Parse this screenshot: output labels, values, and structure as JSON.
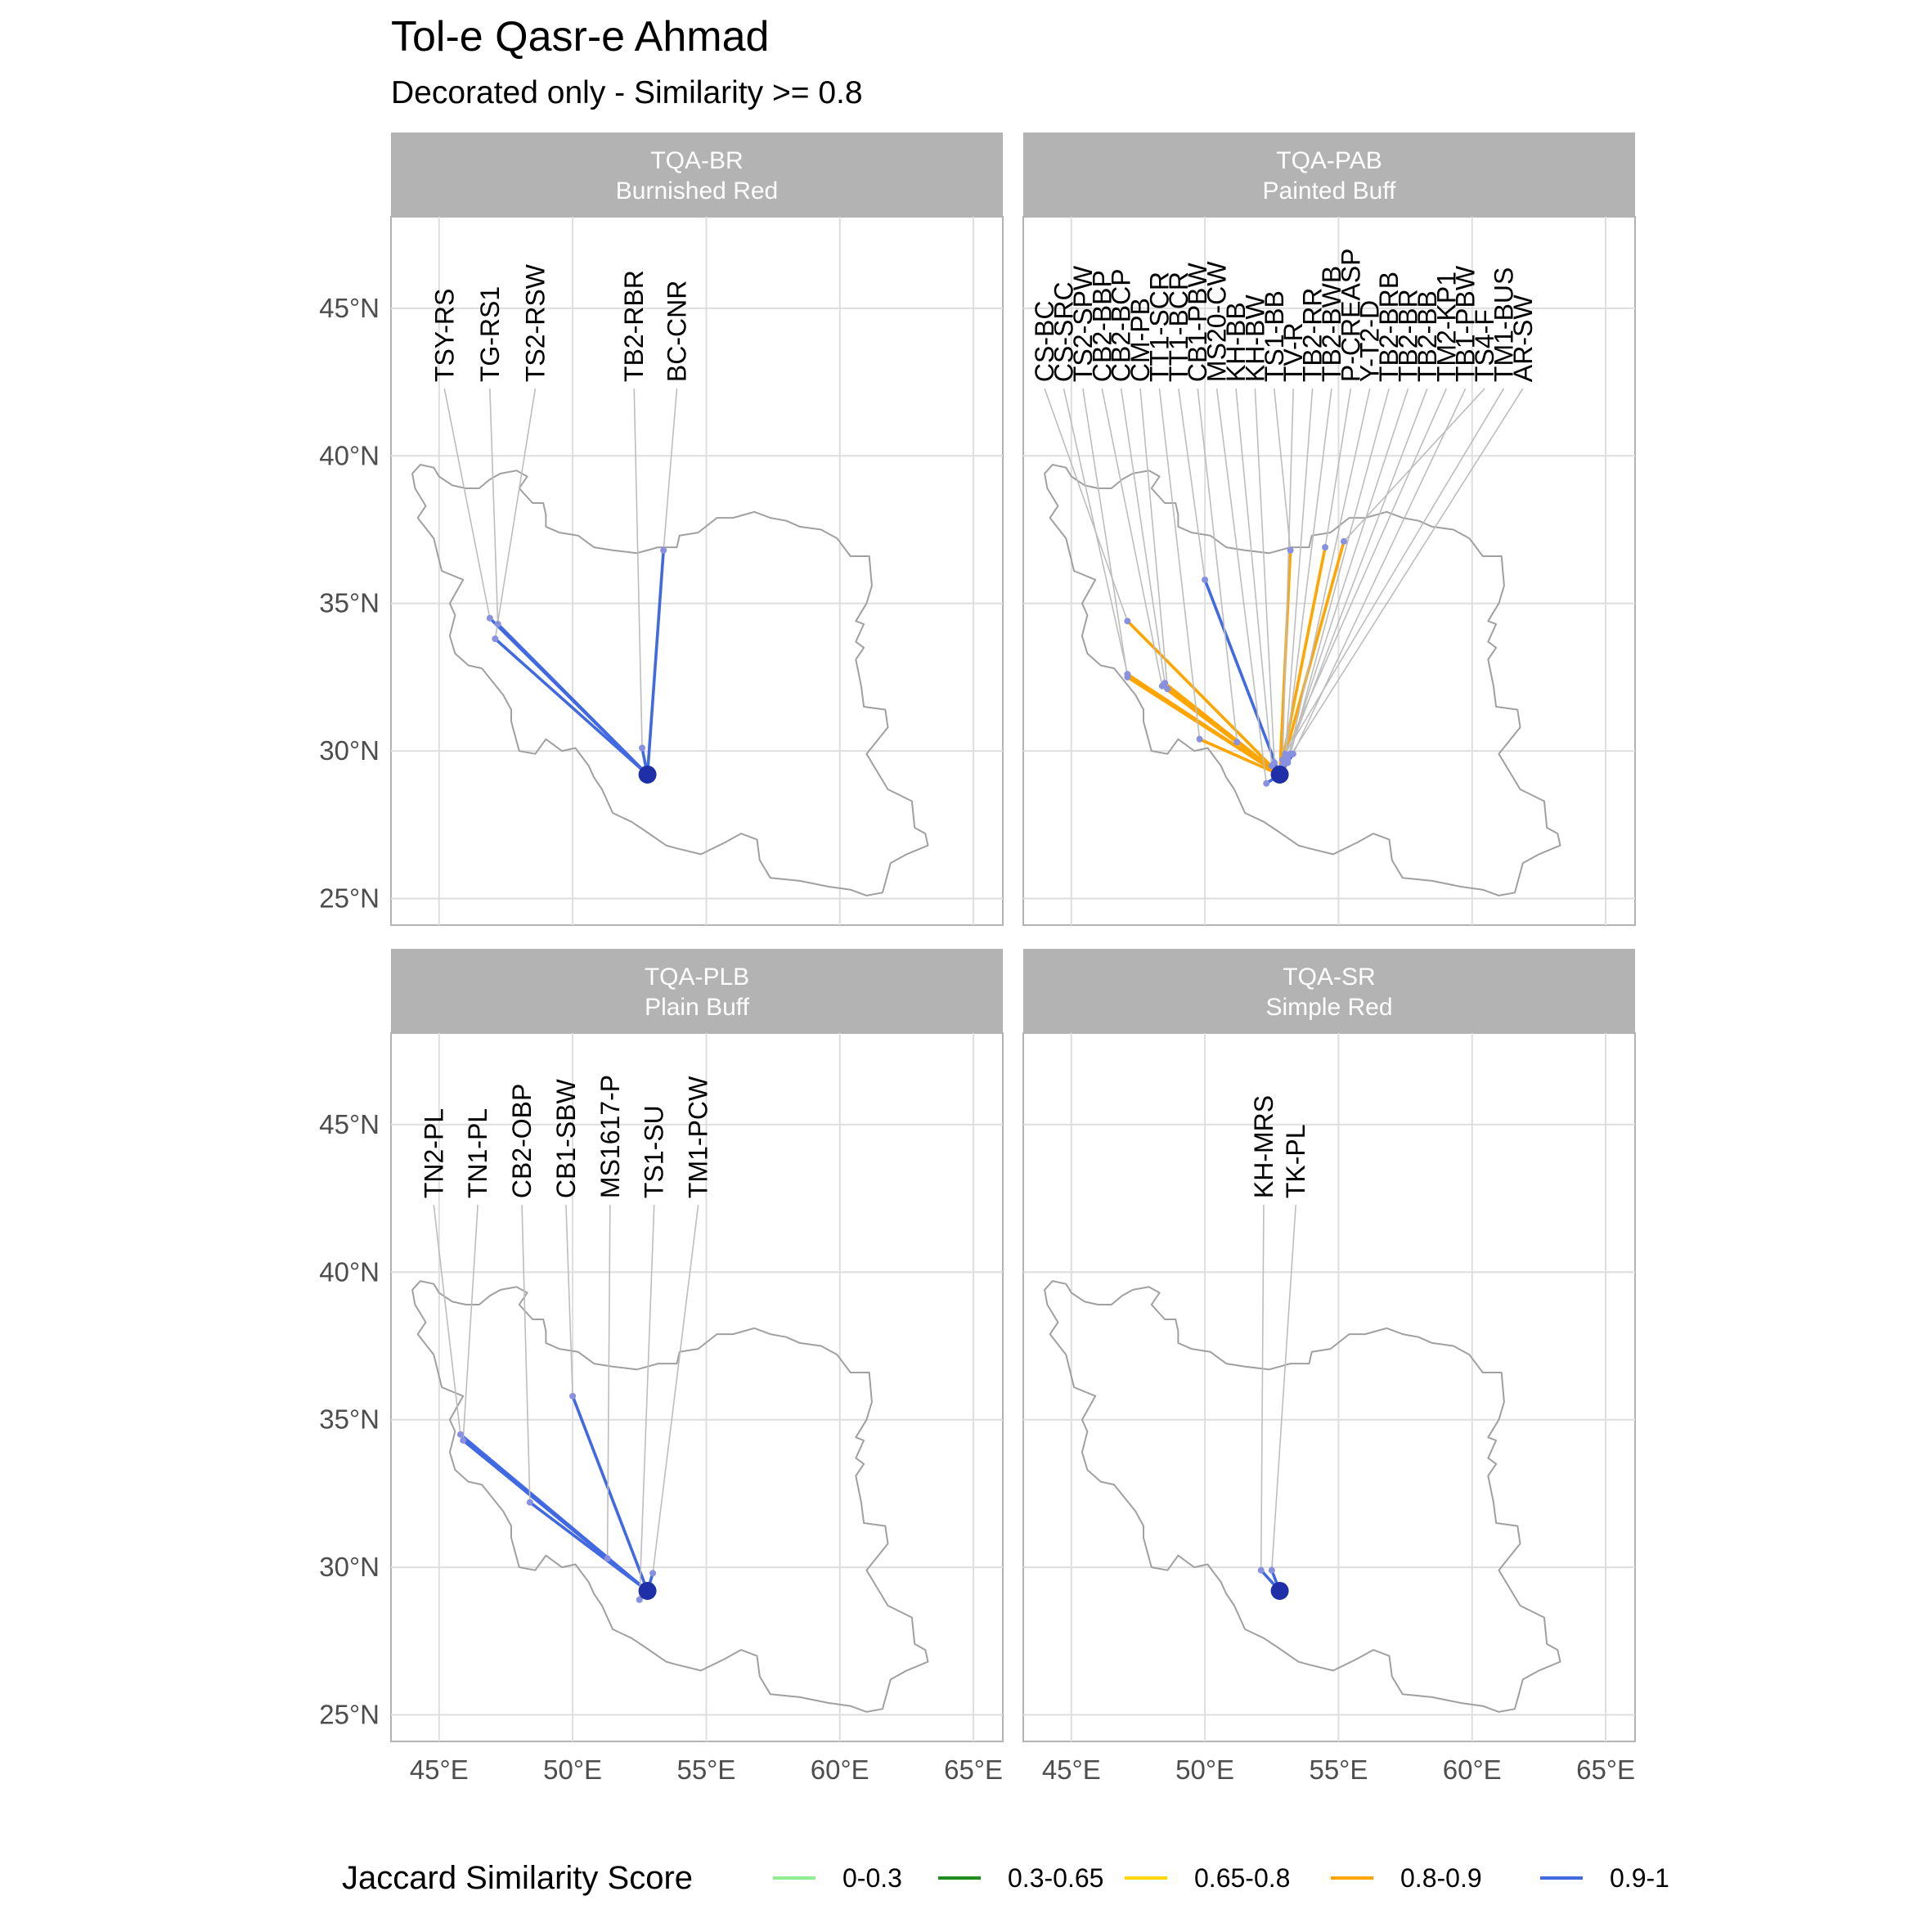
{
  "title": "Tol-e Qasr-e Ahmad",
  "subtitle": "Decorated only - Similarity >= 0.8",
  "axes": {
    "x_ticks": [
      {
        "value": 45,
        "label": "45°E"
      },
      {
        "value": 50,
        "label": "50°E"
      },
      {
        "value": 55,
        "label": "55°E"
      },
      {
        "value": 60,
        "label": "60°E"
      },
      {
        "value": 65,
        "label": "65°E"
      }
    ],
    "y_ticks": [
      {
        "value": 25,
        "label": "25°N"
      },
      {
        "value": 30,
        "label": "30°N"
      },
      {
        "value": 35,
        "label": "35°N"
      },
      {
        "value": 40,
        "label": "40°N"
      },
      {
        "value": 45,
        "label": "45°N"
      }
    ],
    "xlim": [
      43.2,
      66.1
    ],
    "ylim": [
      24.1,
      48.1
    ]
  },
  "legend": {
    "title": "Jaccard Similarity Score",
    "items": [
      {
        "label": "0-0.3",
        "color": "#90ee90"
      },
      {
        "label": "0.3-0.65",
        "color": "#228b22"
      },
      {
        "label": "0.65-0.8",
        "color": "#ffd700"
      },
      {
        "label": "0.8-0.9",
        "color": "#ffa500"
      },
      {
        "label": "0.9-1",
        "color": "#4169e1"
      }
    ]
  },
  "origin": {
    "lon": 52.8,
    "lat": 29.2
  },
  "chart_data": {
    "type": "map",
    "panels": [
      {
        "code": "TQA-BR",
        "name": "Burnished Red",
        "sites": [
          {
            "label": "TSY-RS",
            "lon": 46.9,
            "lat": 34.5,
            "color": "#4169e1"
          },
          {
            "label": "TG-RS1",
            "lon": 47.2,
            "lat": 34.3,
            "color": "#4169e1"
          },
          {
            "label": "TS2-RSW",
            "lon": 47.1,
            "lat": 33.8,
            "color": "#4169e1"
          },
          {
            "label": "TB2-RBR",
            "lon": 52.6,
            "lat": 30.1,
            "color": "#4169e1"
          },
          {
            "label": "BC-CNR",
            "lon": 53.4,
            "lat": 36.8,
            "color": "#4169e1"
          }
        ]
      },
      {
        "code": "TQA-PAB",
        "name": "Painted Buff",
        "sites": [
          {
            "label": "CS-BC",
            "lon": 47.1,
            "lat": 34.4,
            "color": "#ffa500"
          },
          {
            "label": "CS-SRC",
            "lon": 47.1,
            "lat": 32.6,
            "color": "#ffa500"
          },
          {
            "label": "TS2-SPW",
            "lon": 47.1,
            "lat": 32.5,
            "color": "#ffa500"
          },
          {
            "label": "CB2-BBP",
            "lon": 48.4,
            "lat": 32.2,
            "color": "#ffa500"
          },
          {
            "label": "CB2-BCP",
            "lon": 48.5,
            "lat": 32.3,
            "color": "#ffa500"
          },
          {
            "label": "CM-PB",
            "lon": 48.6,
            "lat": 32.1,
            "color": "#ffa500"
          },
          {
            "label": "TT1-SCR",
            "lon": 49.8,
            "lat": 30.4,
            "color": "#ffa500"
          },
          {
            "label": "TT1-BCR",
            "lon": 50.0,
            "lat": 35.8,
            "color": "#4169e1"
          },
          {
            "label": "CB1-PBW",
            "lon": 51.2,
            "lat": 30.3,
            "color": "#ffa500"
          },
          {
            "label": "MS20-CW",
            "lon": 52.3,
            "lat": 28.9,
            "color": "#4169e1"
          },
          {
            "label": "KH-BB",
            "lon": 52.5,
            "lat": 29.5,
            "color": "#4169e1"
          },
          {
            "label": "KH-BW",
            "lon": 52.6,
            "lat": 29.6,
            "color": "#4169e1"
          },
          {
            "label": "TS1-BB",
            "lon": 53.2,
            "lat": 36.8,
            "color": "#ffa500"
          },
          {
            "label": "TV-R",
            "lon": 52.9,
            "lat": 29.5,
            "color": "#ffa500"
          },
          {
            "label": "TB2-RR",
            "lon": 53.0,
            "lat": 29.8,
            "color": "#ffa500"
          },
          {
            "label": "TB2-BWB",
            "lon": 53.0,
            "lat": 29.7,
            "color": "#ffa500"
          },
          {
            "label": "P-CREASP",
            "lon": 54.5,
            "lat": 36.9,
            "color": "#ffa500"
          },
          {
            "label": "Y-T2-D",
            "lon": 53.1,
            "lat": 29.6,
            "color": "#ffa500"
          },
          {
            "label": "TB2-BRB",
            "lon": 53.2,
            "lat": 29.9,
            "color": "#ffa500"
          },
          {
            "label": "TB2-BR",
            "lon": 53.1,
            "lat": 29.8,
            "color": "#ffa500"
          },
          {
            "label": "TB2-BB",
            "lon": 53.0,
            "lat": 29.6,
            "color": "#ffa500"
          },
          {
            "label": "TM2-KP1",
            "lon": 52.9,
            "lat": 29.7,
            "color": "#ffa500"
          },
          {
            "label": "TB1-PBW",
            "lon": 53.3,
            "lat": 29.9,
            "color": "#4169e1"
          },
          {
            "label": "TS4-F",
            "lon": 55.2,
            "lat": 37.1,
            "color": "#ffa500"
          },
          {
            "label": "TM1-BUS",
            "lon": 53.0,
            "lat": 29.9,
            "color": "#ffa500"
          },
          {
            "label": "AR-SW",
            "lon": 53.1,
            "lat": 29.7,
            "color": "#ffa500"
          }
        ]
      },
      {
        "code": "TQA-PLB",
        "name": "Plain Buff",
        "sites": [
          {
            "label": "TN2-PL",
            "lon": 45.8,
            "lat": 34.5,
            "color": "#4169e1"
          },
          {
            "label": "TN1-PL",
            "lon": 45.9,
            "lat": 34.3,
            "color": "#4169e1"
          },
          {
            "label": "CB2-OBP",
            "lon": 48.4,
            "lat": 32.2,
            "color": "#4169e1"
          },
          {
            "label": "CB1-SBW",
            "lon": 50.0,
            "lat": 35.8,
            "color": "#4169e1"
          },
          {
            "label": "MS1617-P",
            "lon": 51.3,
            "lat": 30.3,
            "color": "#4169e1"
          },
          {
            "label": "TS1-SU",
            "lon": 52.5,
            "lat": 28.9,
            "color": "#4169e1"
          },
          {
            "label": "TM1-PCW",
            "lon": 53.0,
            "lat": 29.8,
            "color": "#4169e1"
          }
        ]
      },
      {
        "code": "TQA-SR",
        "name": "Simple Red",
        "sites": [
          {
            "label": "KH-MRS",
            "lon": 52.1,
            "lat": 29.9,
            "color": "#4169e1"
          },
          {
            "label": "TK-PL",
            "lon": 52.5,
            "lat": 29.9,
            "color": "#4169e1"
          }
        ]
      }
    ],
    "label_lat": 42.5,
    "grid": true,
    "legend_position": "bottom"
  },
  "iran_outline": [
    [
      44.0,
      39.4
    ],
    [
      44.3,
      39.7
    ],
    [
      44.8,
      39.6
    ],
    [
      45.0,
      39.3
    ],
    [
      45.5,
      39.0
    ],
    [
      46.0,
      38.9
    ],
    [
      46.5,
      38.9
    ],
    [
      46.9,
      39.2
    ],
    [
      47.3,
      39.4
    ],
    [
      47.9,
      39.5
    ],
    [
      48.3,
      39.3
    ],
    [
      48.0,
      38.9
    ],
    [
      48.5,
      38.4
    ],
    [
      48.9,
      38.4
    ],
    [
      49.0,
      38.0
    ],
    [
      49.0,
      37.6
    ],
    [
      49.5,
      37.4
    ],
    [
      50.2,
      37.3
    ],
    [
      50.8,
      36.9
    ],
    [
      51.5,
      36.8
    ],
    [
      52.4,
      36.7
    ],
    [
      53.2,
      36.9
    ],
    [
      53.9,
      36.9
    ],
    [
      54.0,
      37.3
    ],
    [
      54.7,
      37.4
    ],
    [
      55.4,
      37.9
    ],
    [
      56.0,
      37.9
    ],
    [
      56.8,
      38.1
    ],
    [
      57.4,
      37.9
    ],
    [
      58.0,
      37.8
    ],
    [
      58.5,
      37.6
    ],
    [
      59.3,
      37.5
    ],
    [
      59.9,
      37.2
    ],
    [
      60.4,
      36.6
    ],
    [
      61.1,
      36.6
    ],
    [
      61.2,
      35.6
    ],
    [
      61.0,
      35.0
    ],
    [
      60.6,
      34.4
    ],
    [
      60.9,
      34.3
    ],
    [
      60.6,
      33.7
    ],
    [
      60.9,
      33.5
    ],
    [
      60.6,
      33.1
    ],
    [
      60.8,
      32.2
    ],
    [
      60.9,
      31.5
    ],
    [
      61.7,
      31.4
    ],
    [
      61.8,
      30.8
    ],
    [
      61.0,
      29.9
    ],
    [
      61.4,
      29.3
    ],
    [
      61.8,
      28.7
    ],
    [
      62.7,
      28.3
    ],
    [
      62.8,
      27.4
    ],
    [
      63.2,
      27.2
    ],
    [
      63.3,
      26.8
    ],
    [
      62.5,
      26.5
    ],
    [
      61.9,
      26.2
    ],
    [
      61.6,
      25.2
    ],
    [
      61.0,
      25.1
    ],
    [
      60.4,
      25.3
    ],
    [
      59.6,
      25.4
    ],
    [
      58.5,
      25.6
    ],
    [
      57.4,
      25.7
    ],
    [
      57.0,
      26.3
    ],
    [
      56.9,
      27.0
    ],
    [
      56.3,
      27.2
    ],
    [
      55.7,
      26.9
    ],
    [
      54.8,
      26.5
    ],
    [
      53.9,
      26.7
    ],
    [
      53.5,
      26.8
    ],
    [
      52.7,
      27.3
    ],
    [
      52.2,
      27.6
    ],
    [
      51.5,
      27.9
    ],
    [
      51.1,
      28.7
    ],
    [
      50.8,
      29.1
    ],
    [
      50.6,
      29.5
    ],
    [
      50.1,
      30.1
    ],
    [
      49.6,
      30.0
    ],
    [
      49.0,
      30.4
    ],
    [
      48.6,
      29.9
    ],
    [
      48.0,
      30.0
    ],
    [
      47.7,
      31.0
    ],
    [
      47.7,
      31.4
    ],
    [
      47.4,
      31.9
    ],
    [
      46.6,
      32.8
    ],
    [
      46.1,
      32.9
    ],
    [
      45.6,
      33.3
    ],
    [
      45.4,
      33.9
    ],
    [
      45.6,
      34.6
    ],
    [
      45.4,
      35.0
    ],
    [
      45.9,
      35.8
    ],
    [
      45.1,
      36.1
    ],
    [
      44.8,
      37.2
    ],
    [
      44.2,
      37.9
    ],
    [
      44.5,
      38.3
    ],
    [
      44.1,
      38.9
    ],
    [
      44.0,
      39.4
    ]
  ]
}
